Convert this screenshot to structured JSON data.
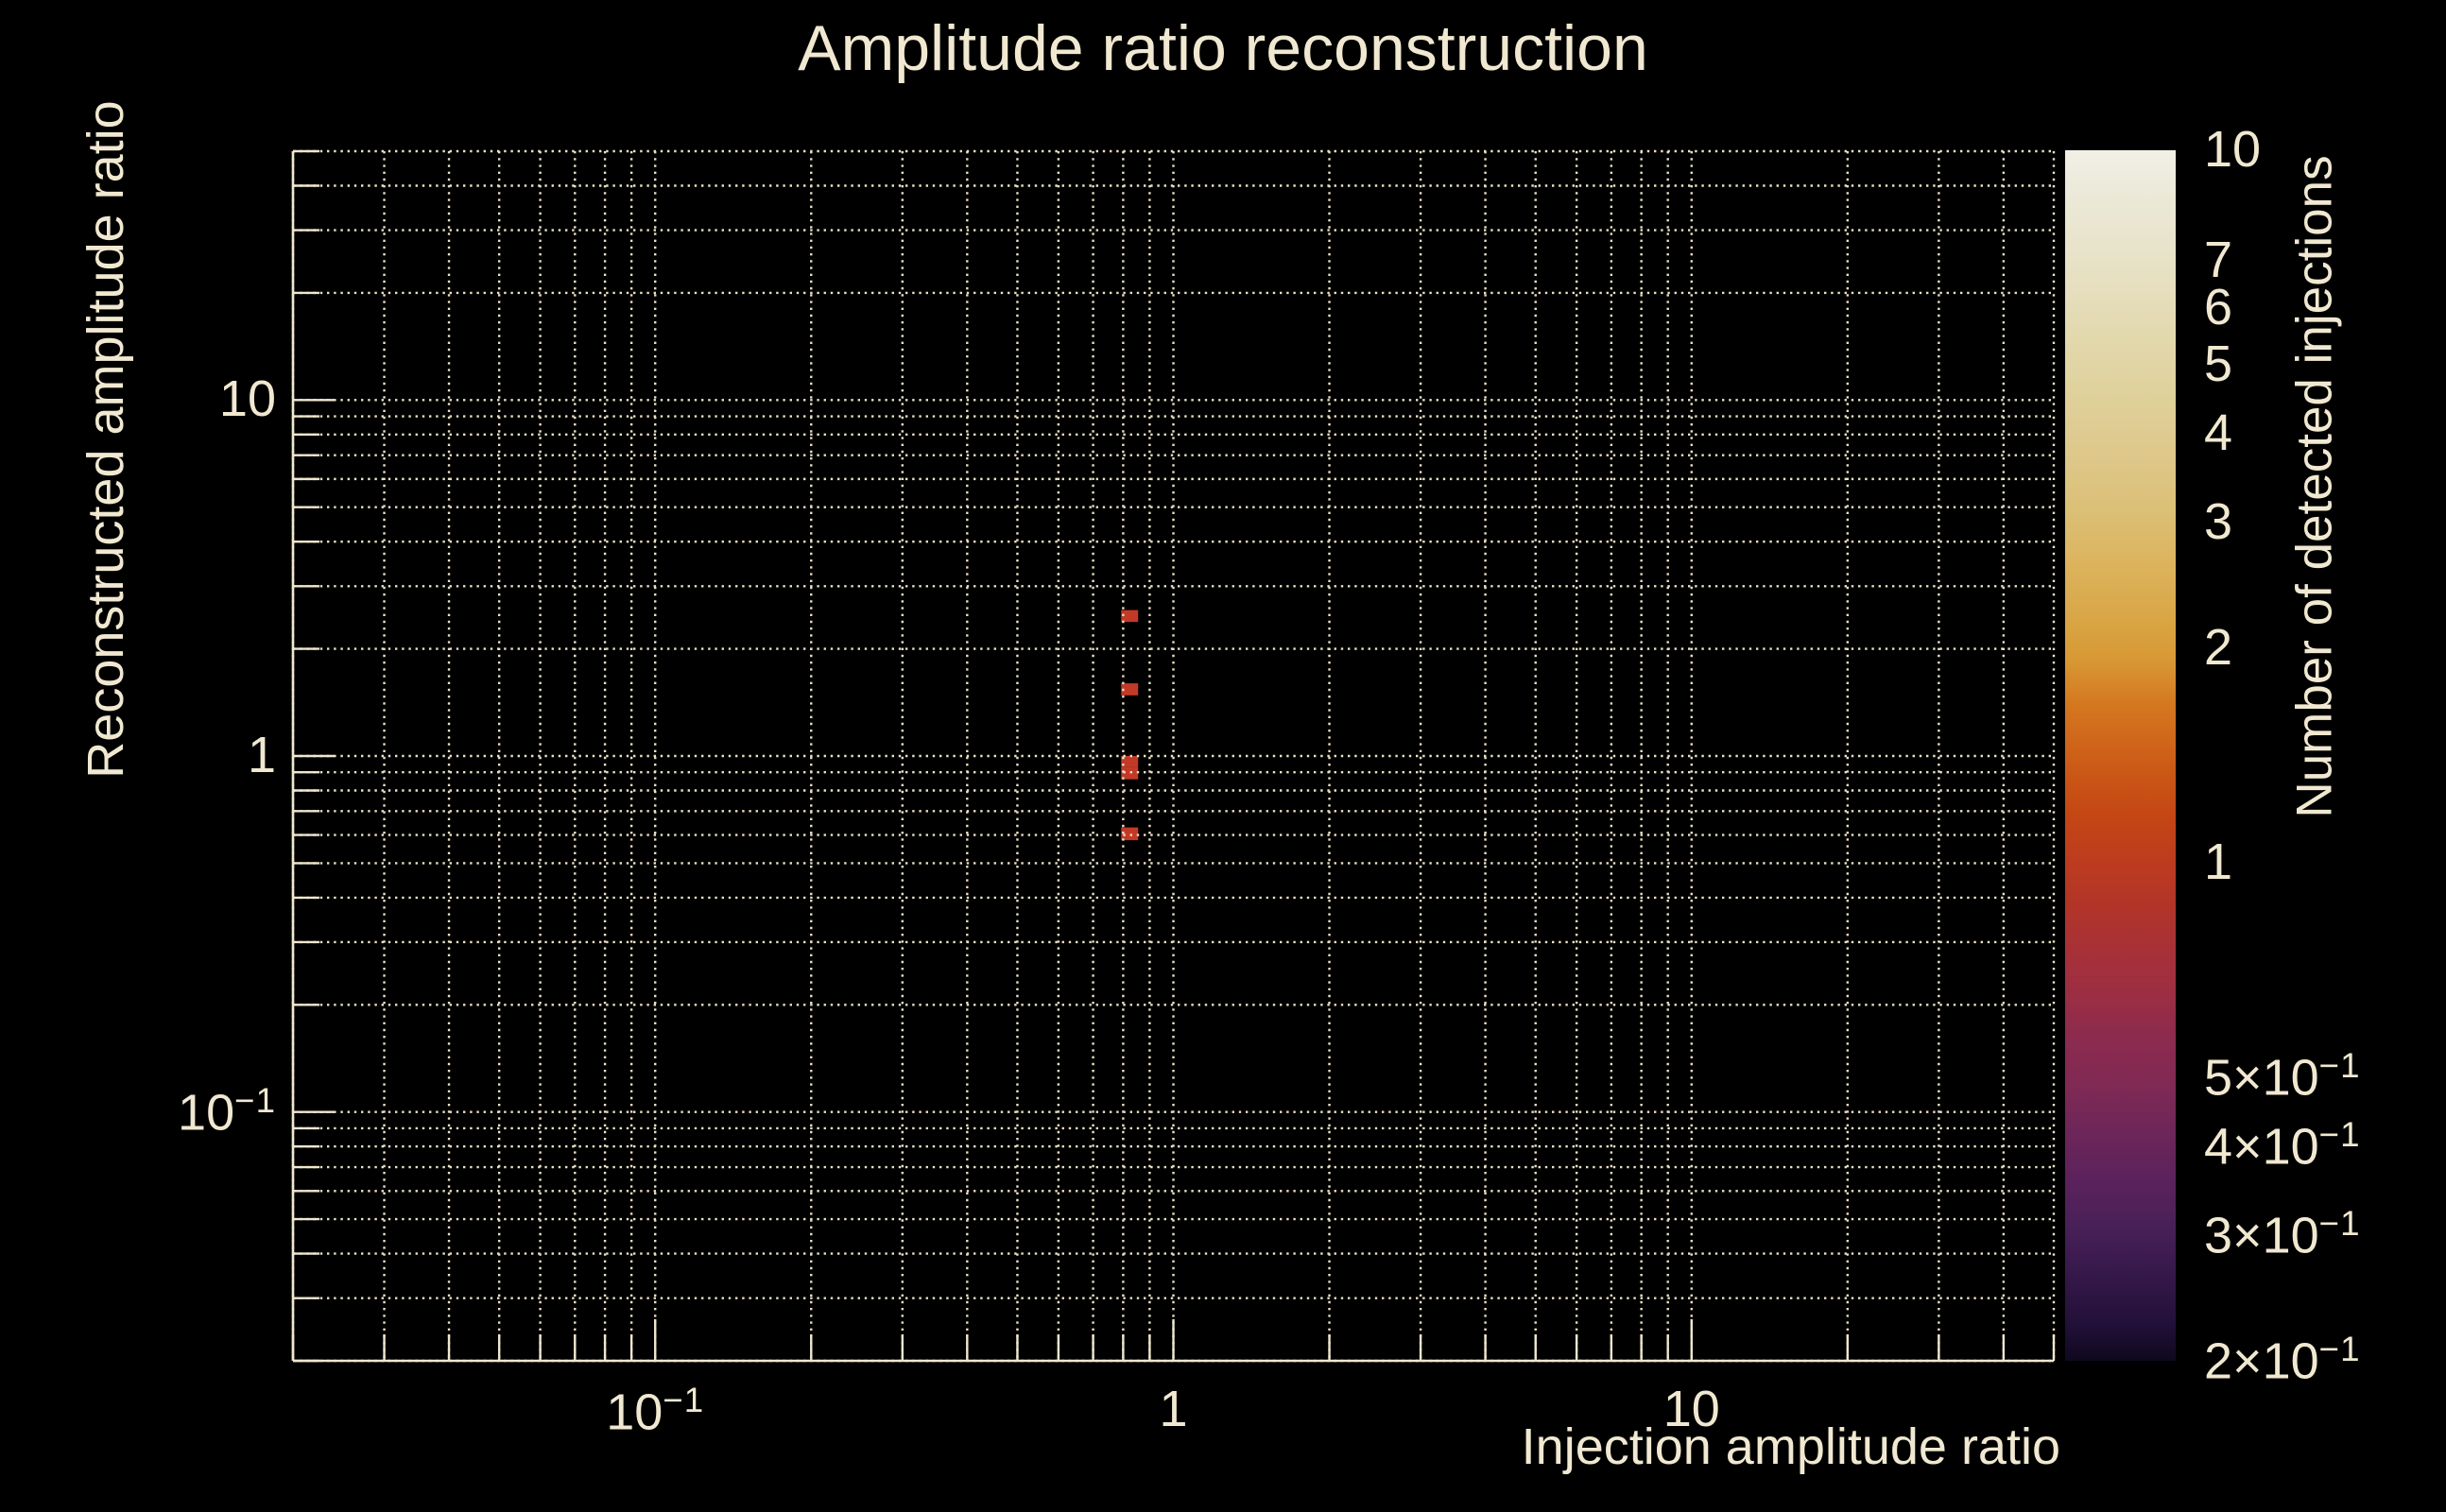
{
  "chart_data": {
    "type": "heatmap",
    "title": "Amplitude ratio reconstruction",
    "xlabel": "Injection amplitude ratio",
    "ylabel": "Reconstructed amplitude ratio",
    "xscale": "log",
    "yscale": "log",
    "xlim": [
      0.02,
      50
    ],
    "ylim": [
      0.02,
      50
    ],
    "grid": "dotted gridlines at every log-decade mantissa (2-9) and decade on both axes",
    "legend_position": "right-colorbar",
    "x_tick_labels": [
      {
        "value": 0.1,
        "base": "10",
        "exp": "−1"
      },
      {
        "value": 1,
        "base": "1"
      },
      {
        "value": 10,
        "base": "10"
      }
    ],
    "y_tick_labels": [
      {
        "value": 0.1,
        "base": "10",
        "exp": "−1"
      },
      {
        "value": 1,
        "base": "1"
      },
      {
        "value": 10,
        "base": "10"
      }
    ],
    "bins": [
      {
        "x": [
          0.793,
          0.855
        ],
        "y": [
          2.38,
          2.57
        ],
        "count": 1
      },
      {
        "x": [
          0.793,
          0.855
        ],
        "y": [
          1.48,
          1.6
        ],
        "count": 1
      },
      {
        "x": [
          0.793,
          0.855
        ],
        "y": [
          0.93,
          1.0
        ],
        "count": 1
      },
      {
        "x": [
          0.793,
          0.855
        ],
        "y": [
          0.86,
          0.93
        ],
        "count": 1
      },
      {
        "x": [
          0.793,
          0.855
        ],
        "y": [
          0.58,
          0.63
        ],
        "count": 1
      }
    ],
    "bin_fill_color": "#c23a26",
    "colorbar": {
      "label": "Number of detected injections",
      "scale": "log",
      "range": [
        0.2,
        10
      ],
      "tick_labels": [
        {
          "value": 10,
          "base": "10"
        },
        {
          "value": 7,
          "base": "7"
        },
        {
          "value": 6,
          "base": "6"
        },
        {
          "value": 5,
          "base": "5"
        },
        {
          "value": 4,
          "base": "4"
        },
        {
          "value": 3,
          "base": "3"
        },
        {
          "value": 2,
          "base": "2"
        },
        {
          "value": 1,
          "base": "1"
        },
        {
          "value": 0.5,
          "base": "5×10",
          "exp": "−1"
        },
        {
          "value": 0.4,
          "base": "4×10",
          "exp": "−1"
        },
        {
          "value": 0.3,
          "base": "3×10",
          "exp": "−1"
        },
        {
          "value": 0.2,
          "base": "2×10",
          "exp": "−1"
        }
      ],
      "minor_ticks": [
        0.3,
        0.4,
        0.5,
        0.6,
        0.7,
        0.8,
        0.9,
        2,
        3,
        4,
        5,
        6,
        7,
        8,
        9
      ],
      "major_ticks": [
        1
      ],
      "palette_bottom_to_top": [
        {
          "pos": 0,
          "color": "#0f081e"
        },
        {
          "pos": 3,
          "color": "#221038"
        },
        {
          "pos": 7,
          "color": "#35184a"
        },
        {
          "pos": 11,
          "color": "#482058"
        },
        {
          "pos": 15,
          "color": "#5c225c"
        },
        {
          "pos": 19,
          "color": "#6e2659"
        },
        {
          "pos": 23,
          "color": "#812a54"
        },
        {
          "pos": 27,
          "color": "#8d2b4e"
        },
        {
          "pos": 30,
          "color": "#9b2e44"
        },
        {
          "pos": 34,
          "color": "#a83137"
        },
        {
          "pos": 38,
          "color": "#b33527"
        },
        {
          "pos": 41,
          "color": "#bc3b20"
        },
        {
          "pos": 45,
          "color": "#c44614"
        },
        {
          "pos": 49,
          "color": "#cc5a17"
        },
        {
          "pos": 54,
          "color": "#d4761f"
        },
        {
          "pos": 58,
          "color": "#d89935"
        },
        {
          "pos": 62,
          "color": "#d9a849"
        },
        {
          "pos": 66,
          "color": "#dcb45e"
        },
        {
          "pos": 70,
          "color": "#dbbf75"
        },
        {
          "pos": 74,
          "color": "#ddc687"
        },
        {
          "pos": 81,
          "color": "#e0d3a0"
        },
        {
          "pos": 89,
          "color": "#e6dfc0"
        },
        {
          "pos": 97,
          "color": "#eceadb"
        },
        {
          "pos": 100,
          "color": "#f2f0e6"
        }
      ]
    }
  },
  "colors": {
    "background": "#000000",
    "text": "#f0e8d0",
    "grid": "#eae1c5",
    "axis": "#efe7ce",
    "colorbar_tick": "#000000"
  }
}
